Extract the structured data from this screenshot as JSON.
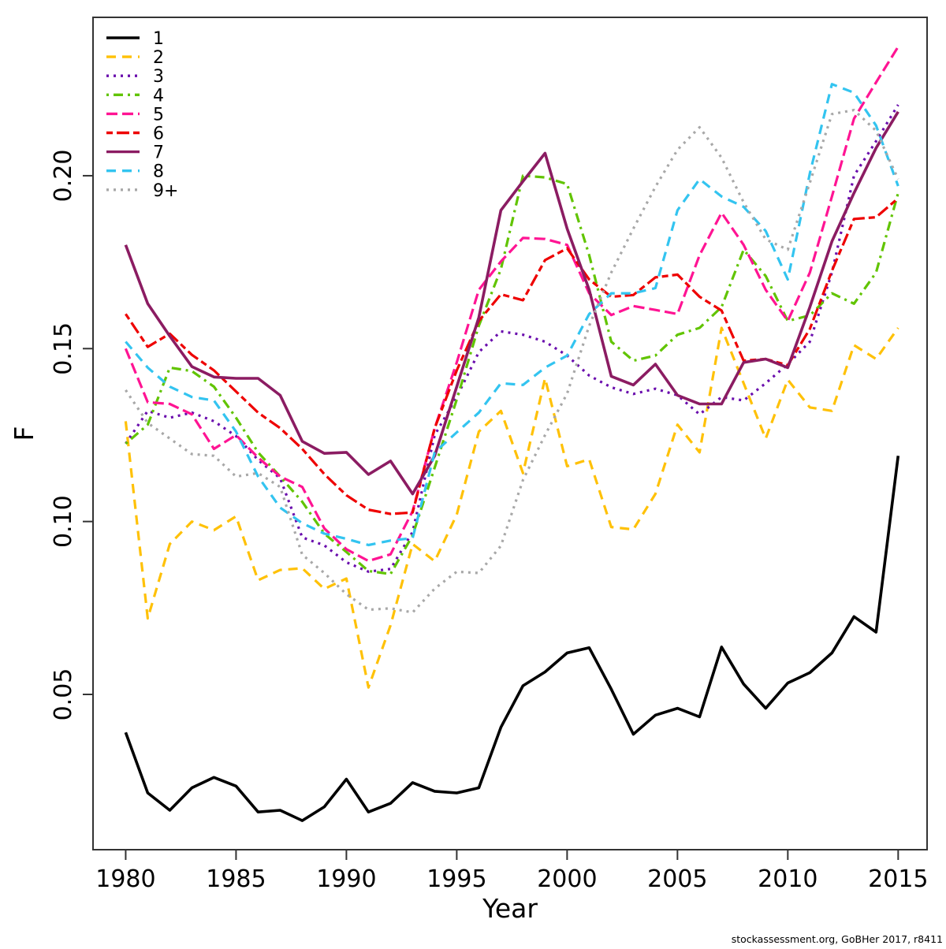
{
  "page": {
    "background": "#ffffff"
  },
  "axes": {
    "y_label": "F",
    "x_label": "Year"
  },
  "footer": {
    "attribution": "stockassessment.org, GoBHer 2017, r8411"
  },
  "legend": {
    "entries": [
      "1",
      "2",
      "3",
      "4",
      "5",
      "6",
      "7",
      "8",
      "9+"
    ]
  },
  "chart_data": {
    "type": "line",
    "title": "",
    "xlabel": "Year",
    "ylabel": "F",
    "grid": false,
    "legend_position": "top-left",
    "x_ticks": [
      1980,
      1985,
      1990,
      1995,
      2000,
      2005,
      2010,
      2015
    ],
    "y_ticks": [
      0.05,
      0.1,
      0.15,
      0.2
    ],
    "x_range": [
      1978.52,
      2016.31
    ],
    "y_range": [
      0.0051,
      0.2458
    ],
    "x": [
      1980,
      1981,
      1982,
      1983,
      1984,
      1985,
      1986,
      1987,
      1988,
      1989,
      1990,
      1991,
      1992,
      1993,
      1994,
      1995,
      1996,
      1997,
      1998,
      1999,
      2000,
      2001,
      2002,
      2003,
      2004,
      2005,
      2006,
      2007,
      2008,
      2009,
      2010,
      2011,
      2012,
      2013,
      2014,
      2015
    ],
    "series": [
      {
        "name": "1",
        "color": "#000000",
        "linetype": "solid",
        "values": [
          0.039,
          0.0215,
          0.0165,
          0.023,
          0.026,
          0.0235,
          0.016,
          0.0165,
          0.0135,
          0.0175,
          0.0255,
          0.016,
          0.0185,
          0.0245,
          0.022,
          0.0215,
          0.023,
          0.0405,
          0.0525,
          0.0565,
          0.062,
          0.0635,
          0.0515,
          0.0385,
          0.044,
          0.046,
          0.0435,
          0.0637,
          0.053,
          0.046,
          0.0533,
          0.0563,
          0.062,
          0.0725,
          0.068,
          0.119
        ]
      },
      {
        "name": "2",
        "color": "#FFC107",
        "linetype": "dashed",
        "values": [
          0.129,
          0.072,
          0.0935,
          0.1,
          0.0975,
          0.1015,
          0.083,
          0.086,
          0.0865,
          0.0805,
          0.0835,
          0.052,
          0.07,
          0.0935,
          0.0885,
          0.102,
          0.126,
          0.132,
          0.114,
          0.1414,
          0.116,
          0.118,
          0.0984,
          0.0977,
          0.108,
          0.128,
          0.12,
          0.156,
          0.14,
          0.124,
          0.141,
          0.133,
          0.132,
          0.151,
          0.147,
          0.156
        ]
      },
      {
        "name": "3",
        "color": "#6A0DAD",
        "linetype": "dotted",
        "values": [
          0.1225,
          0.132,
          0.13,
          0.1315,
          0.129,
          0.1247,
          0.1178,
          0.1125,
          0.0954,
          0.0931,
          0.0882,
          0.0855,
          0.0863,
          0.097,
          0.125,
          0.136,
          0.149,
          0.155,
          0.154,
          0.152,
          0.148,
          0.1422,
          0.1388,
          0.1369,
          0.1384,
          0.1365,
          0.131,
          0.136,
          0.135,
          0.14,
          0.1455,
          0.152,
          0.172,
          0.2,
          0.21,
          0.2205
        ]
      },
      {
        "name": "4",
        "color": "#61C400",
        "linetype": "dashdot",
        "values": [
          0.1225,
          0.128,
          0.1445,
          0.1435,
          0.139,
          0.13,
          0.12,
          0.113,
          0.1057,
          0.0965,
          0.0912,
          0.0857,
          0.0848,
          0.096,
          0.1156,
          0.1353,
          0.1566,
          0.173,
          0.2,
          0.1995,
          0.1976,
          0.177,
          0.152,
          0.1465,
          0.148,
          0.154,
          0.156,
          0.162,
          0.1786,
          0.171,
          0.158,
          0.1596,
          0.166,
          0.163,
          0.172,
          0.195
        ]
      },
      {
        "name": "5",
        "color": "#FF1493",
        "linetype": "longdash",
        "values": [
          0.15,
          0.1345,
          0.134,
          0.131,
          0.121,
          0.125,
          0.1185,
          0.113,
          0.11,
          0.098,
          0.092,
          0.0886,
          0.0905,
          0.103,
          0.127,
          0.146,
          0.167,
          0.1752,
          0.182,
          0.1817,
          0.18,
          0.166,
          0.1597,
          0.1623,
          0.1612,
          0.16,
          0.177,
          0.1893,
          0.18,
          0.167,
          0.158,
          0.172,
          0.194,
          0.2165,
          0.227,
          0.2373
        ]
      },
      {
        "name": "6",
        "color": "#EE0000",
        "linetype": "twodash",
        "values": [
          0.16,
          0.1505,
          0.1543,
          0.1482,
          0.1437,
          0.1376,
          0.1315,
          0.127,
          0.121,
          0.1137,
          0.1076,
          0.1034,
          0.1022,
          0.1026,
          0.127,
          0.1437,
          0.158,
          0.1657,
          0.164,
          0.1756,
          0.179,
          0.17,
          0.165,
          0.1655,
          0.1706,
          0.1714,
          0.165,
          0.161,
          0.1465,
          0.147,
          0.1452,
          0.1557,
          0.1725,
          0.1875,
          0.188,
          0.1935
        ]
      },
      {
        "name": "7",
        "color": "#8B1C62",
        "linetype": "solid",
        "values": [
          0.18,
          0.163,
          0.1536,
          0.1448,
          0.1418,
          0.1414,
          0.1414,
          0.1365,
          0.1232,
          0.1197,
          0.12,
          0.1136,
          0.1175,
          0.108,
          0.119,
          0.139,
          0.159,
          0.19,
          0.1984,
          0.2065,
          0.1847,
          0.167,
          0.142,
          0.1395,
          0.1455,
          0.1365,
          0.134,
          0.134,
          0.146,
          0.147,
          0.1445,
          0.162,
          0.181,
          0.195,
          0.208,
          0.2185
        ]
      },
      {
        "name": "8",
        "color": "#33C4F0",
        "linetype": "dashed",
        "values": [
          0.152,
          0.1445,
          0.139,
          0.136,
          0.135,
          0.126,
          0.113,
          0.104,
          0.0995,
          0.0965,
          0.095,
          0.0932,
          0.0945,
          0.0952,
          0.12,
          0.1258,
          0.1315,
          0.14,
          0.1395,
          0.1445,
          0.148,
          0.16,
          0.166,
          0.166,
          0.1675,
          0.19,
          0.199,
          0.194,
          0.191,
          0.184,
          0.17,
          0.2007,
          0.2265,
          0.224,
          0.2145,
          0.197
        ]
      },
      {
        "name": "9+",
        "color": "#A8A8A8",
        "linetype": "dotted",
        "values": [
          0.138,
          0.1285,
          0.124,
          0.1195,
          0.119,
          0.113,
          0.114,
          0.11,
          0.0904,
          0.0851,
          0.079,
          0.0745,
          0.0749,
          0.0737,
          0.0806,
          0.0855,
          0.0851,
          0.093,
          0.112,
          0.125,
          0.137,
          0.1566,
          0.172,
          0.1847,
          0.1968,
          0.2075,
          0.214,
          0.2052,
          0.1923,
          0.1816,
          0.1786,
          0.198,
          0.2178,
          0.219,
          0.213,
          0.199
        ]
      }
    ]
  }
}
